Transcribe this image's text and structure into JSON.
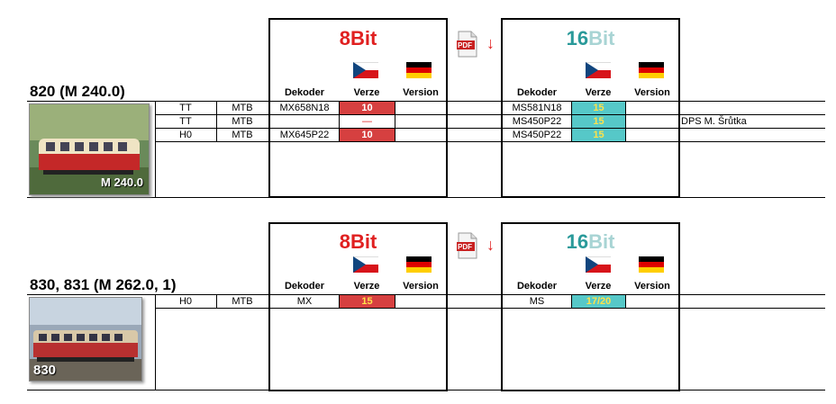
{
  "pdf_icon_text": "PDF",
  "arrow_glyph": "↓",
  "sections": [
    {
      "title": "820 (M 240.0)",
      "photo_label": "M 240.0",
      "bit8": {
        "num": "8",
        "txt": "Bit"
      },
      "bit16": {
        "num": "16",
        "txt": "Bit"
      },
      "headers": {
        "dekoder": "Dekoder",
        "verze": "Verze",
        "version": "Version"
      },
      "rows": [
        {
          "scale": "TT",
          "type": "MTB",
          "dek8": "MX658N18",
          "ver8": "10",
          "dek16": "MS581N18",
          "ver16": "15",
          "note": ""
        },
        {
          "scale": "TT",
          "type": "MTB",
          "dek8": "",
          "ver8": "—",
          "dek16": "MS450P22",
          "ver16": "15",
          "note": "DPS M. Šrůtka"
        },
        {
          "scale": "H0",
          "type": "MTB",
          "dek8": "MX645P22",
          "ver8": "10",
          "dek16": "MS450P22",
          "ver16": "15",
          "note": ""
        }
      ]
    },
    {
      "title": "830, 831 (M 262.0, 1)",
      "photo_label": "830",
      "bit8": {
        "num": "8",
        "txt": "Bit"
      },
      "bit16": {
        "num": "16",
        "txt": "Bit"
      },
      "headers": {
        "dekoder": "Dekoder",
        "verze": "Verze",
        "version": "Version"
      },
      "rows": [
        {
          "scale": "H0",
          "type": "MTB",
          "dek8": "MX",
          "ver8": "15",
          "dek16": "MS",
          "ver16": "17/20",
          "note": ""
        }
      ]
    }
  ],
  "colors": {
    "red_cell": "#d64040",
    "teal_cell": "#56c8c8",
    "red_text": "#e02020",
    "teal_text": "#2a9a9a"
  }
}
